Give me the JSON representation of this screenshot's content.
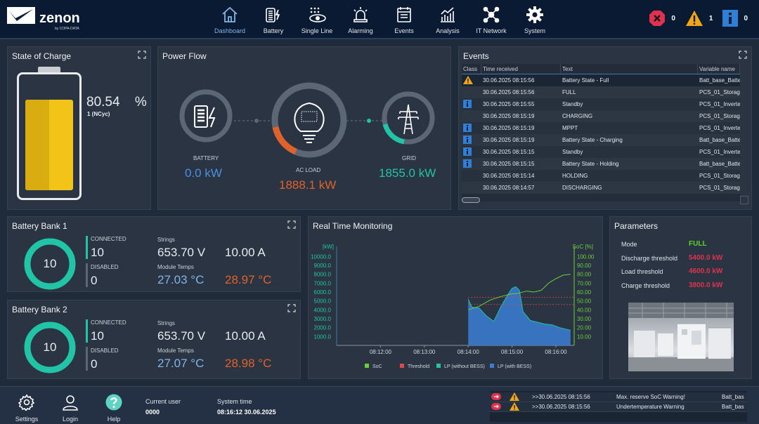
{
  "brand": {
    "name": "zenon",
    "sub": "by COPA-DATA"
  },
  "nav": [
    {
      "label": "Dashboard",
      "icon": "home-icon",
      "active": true
    },
    {
      "label": "Battery",
      "icon": "battery-icon"
    },
    {
      "label": "Single Line",
      "icon": "single-line-icon"
    },
    {
      "label": "Alarming",
      "icon": "alarm-icon"
    },
    {
      "label": "Events",
      "icon": "events-icon"
    },
    {
      "label": "Analysis",
      "icon": "analysis-icon"
    },
    {
      "label": "IT Network",
      "icon": "network-icon"
    },
    {
      "label": "System",
      "icon": "gear-icon"
    }
  ],
  "alarm_counts": {
    "error": "0",
    "warning": "1",
    "info": "0"
  },
  "soc": {
    "title": "State of Charge",
    "value": "80.54",
    "unit": "%",
    "cycles": "1 (NCyc)",
    "level": 0.8054,
    "color": "#f2c417"
  },
  "power_flow": {
    "title": "Power Flow",
    "battery": {
      "label": "BATTERY",
      "value": "0.0 kW",
      "color": "#4a90e2"
    },
    "load": {
      "label": "AC LOAD",
      "value": "1888.1 kW",
      "color": "#e0622a"
    },
    "grid": {
      "label": "GRID",
      "value": "1855.0 kW",
      "color": "#21c4a6"
    }
  },
  "events": {
    "title": "Events",
    "columns": [
      "Class",
      "Time received",
      "Text",
      "Variable name"
    ],
    "rows": [
      {
        "cls": "warning",
        "time": "30.06.2025 08:15:56",
        "text": "Battery State - Full",
        "var": "Batt_base_Batte"
      },
      {
        "cls": "",
        "time": "30.06.2025 08:15:56",
        "text": "FULL",
        "var": "PCS_01_Storage"
      },
      {
        "cls": "info",
        "time": "30.06.2025 08:15:55",
        "text": "Standby",
        "var": "PCS_01_Inverte"
      },
      {
        "cls": "",
        "time": "30.06.2025 08:15:19",
        "text": "CHARGING",
        "var": "PCS_01_Storage"
      },
      {
        "cls": "info",
        "time": "30.06.2025 08:15:19",
        "text": "MPPT",
        "var": "PCS_01_Inverte"
      },
      {
        "cls": "info",
        "time": "30.06.2025 08:15:19",
        "text": "Battery State - Charging",
        "var": "Batt_base_Batte"
      },
      {
        "cls": "info",
        "time": "30.06.2025 08:15:15",
        "text": "Standby",
        "var": "PCS_01_Inverte"
      },
      {
        "cls": "info",
        "time": "30.06.2025 08:15:15",
        "text": "Battery State - Holding",
        "var": "Batt_base_Batte"
      },
      {
        "cls": "",
        "time": "30.06.2025 08:15:14",
        "text": "HOLDING",
        "var": "PCS_01_Storage"
      },
      {
        "cls": "",
        "time": "30.06.2025 08:14:57",
        "text": "DISCHARGING",
        "var": "PCS_01_Storage"
      }
    ]
  },
  "banks": [
    {
      "title": "Battery Bank 1",
      "count": "10",
      "connected_label": "CONNECTED",
      "connected": "10",
      "disabled_label": "DISABLED",
      "disabled": "0",
      "strings_label": "Strings",
      "voltage": "653.70 V",
      "current": "10.00 A",
      "temps_label": "Module Temps",
      "temp1": "27.03 °C",
      "temp2": "28.97 °C"
    },
    {
      "title": "Battery Bank 2",
      "count": "10",
      "connected_label": "CONNECTED",
      "connected": "10",
      "disabled_label": "DISABLED",
      "disabled": "0",
      "strings_label": "Strings",
      "voltage": "653.70 V",
      "current": "10.00 A",
      "temps_label": "Module Temps",
      "temp1": "27.07 °C",
      "temp2": "28.98 °C"
    }
  ],
  "monitoring": {
    "title": "Real Time Monitoring",
    "left_unit": "[kW]",
    "right_unit": "SoC [%]"
  },
  "chart_data": {
    "type": "area",
    "x": [
      "08:14:00",
      "08:14:15",
      "08:14:30",
      "08:14:45",
      "08:15:00",
      "08:15:15",
      "08:15:30",
      "08:15:45",
      "08:16:00",
      "08:16:15"
    ],
    "xticks": [
      "08:12:00",
      "08:13:00",
      "08:14:00",
      "08:15:00",
      "08:16:00"
    ],
    "y_left_ticks": [
      "10000.0",
      "9000.0",
      "8000.0",
      "7000.0",
      "6000.0",
      "5000.0",
      "4000.0",
      "3000.0",
      "2000.0",
      "1000.0"
    ],
    "y_right_ticks": [
      "100.00",
      "90.00",
      "80.00",
      "70.00",
      "60.00",
      "50.00",
      "40.00",
      "30.00",
      "20.00",
      "10.00"
    ],
    "ylim_left": [
      0,
      10500
    ],
    "ylim_right": [
      0,
      105
    ],
    "legend": [
      {
        "name": "SoC",
        "color": "#6ccf3a"
      },
      {
        "name": "Threshold",
        "color": "#e04848"
      },
      {
        "name": "LP (without BESS)",
        "color": "#21c4a6"
      },
      {
        "name": "LP (with BESS)",
        "color": "#3a7fd5"
      }
    ],
    "xlim": [
      "08:11:00",
      "08:16:25"
    ],
    "series": [
      {
        "name": "SoC",
        "x": [
          "08:14:00",
          "08:14:15",
          "08:14:30",
          "08:14:45",
          "08:15:00",
          "08:15:05",
          "08:15:10",
          "08:15:20",
          "08:15:30",
          "08:15:40",
          "08:15:50",
          "08:16:00",
          "08:16:10",
          "08:16:20"
        ],
        "values": [
          40,
          44,
          51,
          55,
          58,
          58,
          59,
          61,
          60,
          62,
          70,
          75,
          79,
          80
        ]
      },
      {
        "name": "LP (with BESS)",
        "x": [
          "08:14:00",
          "08:14:05",
          "08:14:15",
          "08:14:25",
          "08:14:35",
          "08:14:45",
          "08:14:55",
          "08:15:00",
          "08:15:05",
          "08:15:10",
          "08:15:15",
          "08:15:25",
          "08:15:35",
          "08:15:45",
          "08:15:55",
          "08:16:05",
          "08:16:15",
          "08:16:20"
        ],
        "values": [
          5200,
          4300,
          4200,
          3300,
          2700,
          4400,
          5800,
          6400,
          6600,
          6200,
          3800,
          2800,
          2600,
          2400,
          2300,
          2000,
          1800,
          1700
        ]
      }
    ],
    "thresholds": [
      5400,
      4600
    ]
  },
  "parameters": {
    "title": "Parameters",
    "rows": [
      {
        "label": "Mode",
        "value": "FULL",
        "color": "#59d428"
      },
      {
        "label": "Discharge threshold",
        "value": "5400.0 kW",
        "color": "#e0324f"
      },
      {
        "label": "Load threshold",
        "value": "4600.0 kW",
        "color": "#e0324f"
      },
      {
        "label": "Charge threshold",
        "value": "3800.0 kW",
        "color": "#e0324f"
      }
    ]
  },
  "footer": {
    "settings": "Settings",
    "login": "Login",
    "help": "Help",
    "user_label": "Current user",
    "user": "0000",
    "time_label": "System time",
    "time": "08:16:12 30.06.2025",
    "messages": [
      {
        "text1": ">>30.06.2025 08:15:56",
        "text2": "Max. reserve SoC Warning!",
        "var": "Batt_bas"
      },
      {
        "text1": ">>30.06.2025 08:15:56",
        "text2": "Undertemperature Warning",
        "var": "Batt_bas"
      }
    ]
  }
}
